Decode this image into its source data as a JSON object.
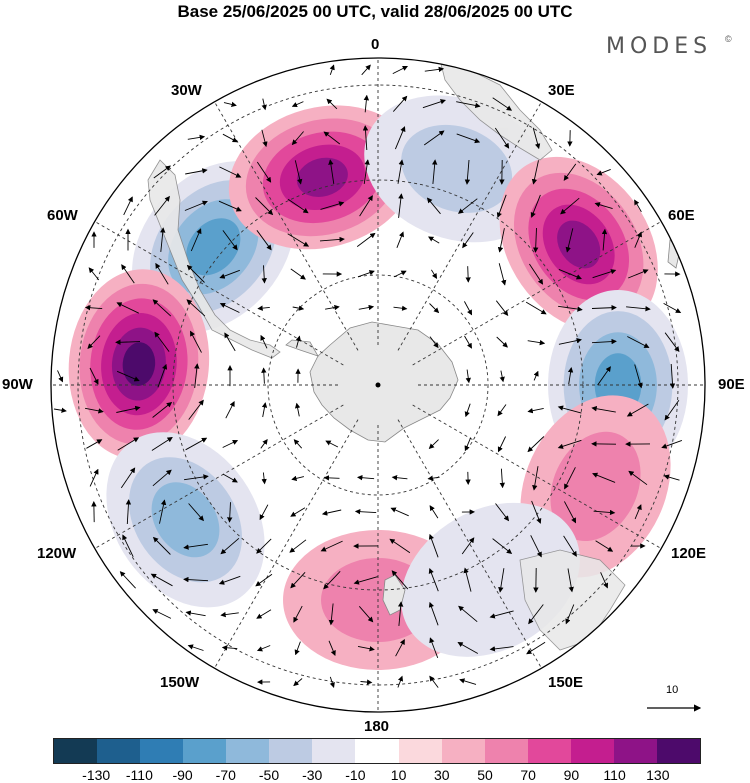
{
  "title": "Base 25/06/2025 00 UTC, valid 28/06/2025 00 UTC",
  "brand": {
    "name": "MODES",
    "mark": "©"
  },
  "longitude_labels": {
    "lon_0": "0",
    "lon_30e": "30E",
    "lon_60e": "60E",
    "lon_90e": "90E",
    "lon_120e": "120E",
    "lon_150e": "150E",
    "lon_180": "180",
    "lon_150w": "150W",
    "lon_120w": "120W",
    "lon_90w": "90W",
    "lon_60w": "60W",
    "lon_30w": "30W"
  },
  "reference_vector": {
    "label": "10"
  },
  "colorbar": {
    "colors": [
      "#133a54",
      "#1e5f8e",
      "#2f7db4",
      "#5aa0cc",
      "#8fb9db",
      "#bdcbe3",
      "#e4e4f0",
      "#ffffff",
      "#fbd9dd",
      "#f6b0c2",
      "#ee82ad",
      "#e2489b",
      "#c41e8f",
      "#8e1387",
      "#4d0a6b"
    ],
    "ticks": [
      "-130",
      "-110",
      "-90",
      "-70",
      "-50",
      "-30",
      "-10",
      "10",
      "30",
      "50",
      "70",
      "90",
      "110",
      "130"
    ]
  },
  "map": {
    "projection": "south polar stereographic",
    "land_color": "#e8e8e8",
    "anomaly_centers": [
      {
        "lon": "50W",
        "sign": "negative",
        "level": "-90"
      },
      {
        "lon": "85W",
        "sign": "positive",
        "level": "130"
      },
      {
        "lon": "125W",
        "sign": "negative",
        "level": "-70"
      },
      {
        "lon": "180",
        "sign": "positive",
        "level": "50"
      },
      {
        "lon": "15W",
        "sign": "positive",
        "level": "110"
      },
      {
        "lon": "20E",
        "sign": "negative",
        "level": "-50"
      },
      {
        "lon": "55E",
        "sign": "positive",
        "level": "110"
      },
      {
        "lon": "90E",
        "sign": "negative",
        "level": "-90"
      },
      {
        "lon": "115E",
        "sign": "positive",
        "level": "50"
      },
      {
        "lon": "150E",
        "sign": "negative",
        "level": "-30"
      }
    ]
  }
}
